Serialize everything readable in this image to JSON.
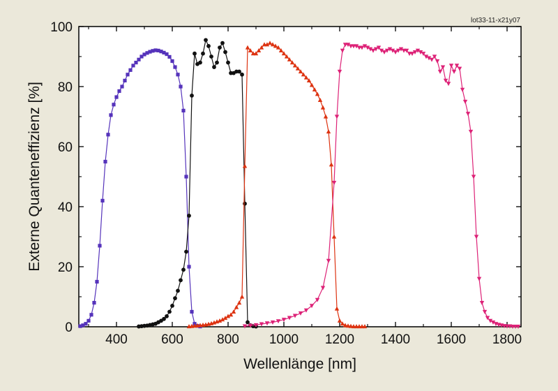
{
  "figure_id": "lot33-11-x21y07",
  "chart_data": {
    "type": "line",
    "title": "",
    "xlabel": "Wellenlänge [nm]",
    "ylabel": "Externe Quanteneffizienz [%]",
    "xlim": [
      265,
      1850
    ],
    "ylim": [
      0,
      100
    ],
    "x_ticks": [
      400,
      600,
      800,
      1000,
      1200,
      1400,
      1600,
      1800
    ],
    "y_ticks": [
      0,
      20,
      40,
      60,
      80,
      100
    ],
    "grid": false,
    "legend": "none",
    "series": [
      {
        "color": "#5533bb",
        "marker": "square",
        "x": [
          270,
          280,
          290,
          300,
          310,
          320,
          330,
          340,
          350,
          360,
          370,
          380,
          390,
          400,
          410,
          420,
          430,
          440,
          450,
          460,
          470,
          480,
          490,
          500,
          510,
          520,
          530,
          540,
          550,
          560,
          570,
          580,
          590,
          600,
          610,
          620,
          630,
          640,
          650,
          660,
          670,
          680,
          690,
          700
        ],
        "y": [
          0.2,
          0.5,
          1,
          2,
          4,
          8,
          15,
          27,
          42,
          55,
          64,
          70.5,
          74,
          76.5,
          78.5,
          80,
          82,
          84,
          85.5,
          87,
          88,
          89,
          90,
          90.7,
          91.2,
          91.6,
          91.9,
          92.1,
          92,
          91.7,
          91.3,
          90.8,
          89.9,
          88.5,
          86.5,
          84,
          80,
          72,
          50,
          20,
          5,
          1,
          0.3,
          0.1
        ]
      },
      {
        "color": "#111111",
        "marker": "circle",
        "x": [
          480,
          490,
          500,
          510,
          520,
          530,
          540,
          550,
          560,
          570,
          580,
          590,
          600,
          610,
          620,
          630,
          640,
          650,
          660,
          670,
          680,
          690,
          700,
          710,
          720,
          730,
          740,
          750,
          760,
          770,
          780,
          790,
          800,
          810,
          820,
          830,
          840,
          850,
          860,
          870,
          880,
          890,
          900
        ],
        "y": [
          0.1,
          0.2,
          0.3,
          0.4,
          0.6,
          0.8,
          1,
          1.5,
          2,
          2.6,
          3.5,
          5,
          7,
          9.5,
          12,
          15.5,
          19,
          25,
          37,
          77,
          91,
          87.5,
          88,
          91,
          95.5,
          93.5,
          90,
          86.5,
          88,
          93,
          94.5,
          91.5,
          88,
          84.5,
          84.5,
          85,
          85,
          84,
          41,
          1.5,
          0.5,
          0.2,
          0.1
        ]
      },
      {
        "color": "#dd3311",
        "marker": "triangle-up",
        "x": [
          660,
          670,
          680,
          690,
          700,
          710,
          720,
          730,
          740,
          750,
          760,
          770,
          780,
          790,
          800,
          810,
          820,
          830,
          840,
          850,
          860,
          870,
          880,
          890,
          900,
          910,
          920,
          930,
          940,
          950,
          960,
          970,
          980,
          990,
          1000,
          1010,
          1020,
          1030,
          1040,
          1050,
          1060,
          1070,
          1080,
          1090,
          1100,
          1110,
          1120,
          1130,
          1140,
          1150,
          1160,
          1170,
          1180,
          1190,
          1200,
          1210,
          1220,
          1230,
          1240,
          1250,
          1260,
          1270,
          1280,
          1290
        ],
        "y": [
          0.1,
          0.2,
          0.3,
          0.4,
          0.5,
          0.6,
          0.7,
          0.9,
          1.1,
          1.4,
          1.7,
          2,
          2.4,
          2.9,
          3.5,
          4,
          5,
          6.5,
          8,
          10,
          53.5,
          93,
          92,
          91,
          91,
          92,
          93,
          94,
          94,
          94.5,
          94,
          93.5,
          93,
          92,
          91,
          90,
          89,
          88,
          87,
          86,
          85,
          84,
          83,
          82,
          80.5,
          79,
          77.5,
          75.5,
          73,
          70,
          65,
          54,
          30,
          6,
          2,
          1,
          0.5,
          0.3,
          0.2,
          0.1,
          0.1,
          0.1,
          0.1,
          0.1
        ]
      },
      {
        "color": "#dd2277",
        "marker": "triangle-down",
        "x": [
          860,
          880,
          900,
          920,
          940,
          960,
          980,
          1000,
          1020,
          1040,
          1060,
          1080,
          1100,
          1120,
          1140,
          1160,
          1180,
          1190,
          1200,
          1210,
          1220,
          1230,
          1240,
          1250,
          1260,
          1270,
          1280,
          1290,
          1300,
          1310,
          1320,
          1330,
          1340,
          1350,
          1360,
          1370,
          1380,
          1390,
          1400,
          1410,
          1420,
          1430,
          1440,
          1450,
          1460,
          1470,
          1480,
          1490,
          1500,
          1510,
          1520,
          1530,
          1540,
          1550,
          1560,
          1570,
          1580,
          1590,
          1600,
          1610,
          1620,
          1630,
          1640,
          1650,
          1660,
          1670,
          1680,
          1690,
          1700,
          1710,
          1720,
          1730,
          1740,
          1750,
          1760,
          1770,
          1780,
          1790,
          1800,
          1810,
          1820,
          1830,
          1840
        ],
        "y": [
          0.2,
          0.4,
          0.6,
          0.9,
          1.2,
          1.5,
          1.9,
          2.4,
          3,
          3.7,
          4.5,
          5.5,
          7,
          9,
          13,
          22,
          48,
          70,
          85,
          92,
          94,
          94,
          93.5,
          93.5,
          93.5,
          93,
          93,
          93.5,
          93,
          92.5,
          92,
          92.5,
          93,
          92,
          91.5,
          92,
          92.5,
          92,
          91.5,
          92,
          92.5,
          92,
          92,
          91,
          91,
          91.5,
          92,
          91.5,
          91,
          90,
          89.5,
          89,
          90,
          88.5,
          85,
          86.5,
          82,
          81,
          87,
          85,
          87,
          86,
          79,
          75,
          71,
          65,
          50,
          30,
          16,
          8,
          5,
          3,
          2,
          1.5,
          1,
          0.7,
          0.5,
          0.3,
          0.2,
          0.2,
          0.1,
          0.1,
          0.1
        ]
      }
    ]
  }
}
